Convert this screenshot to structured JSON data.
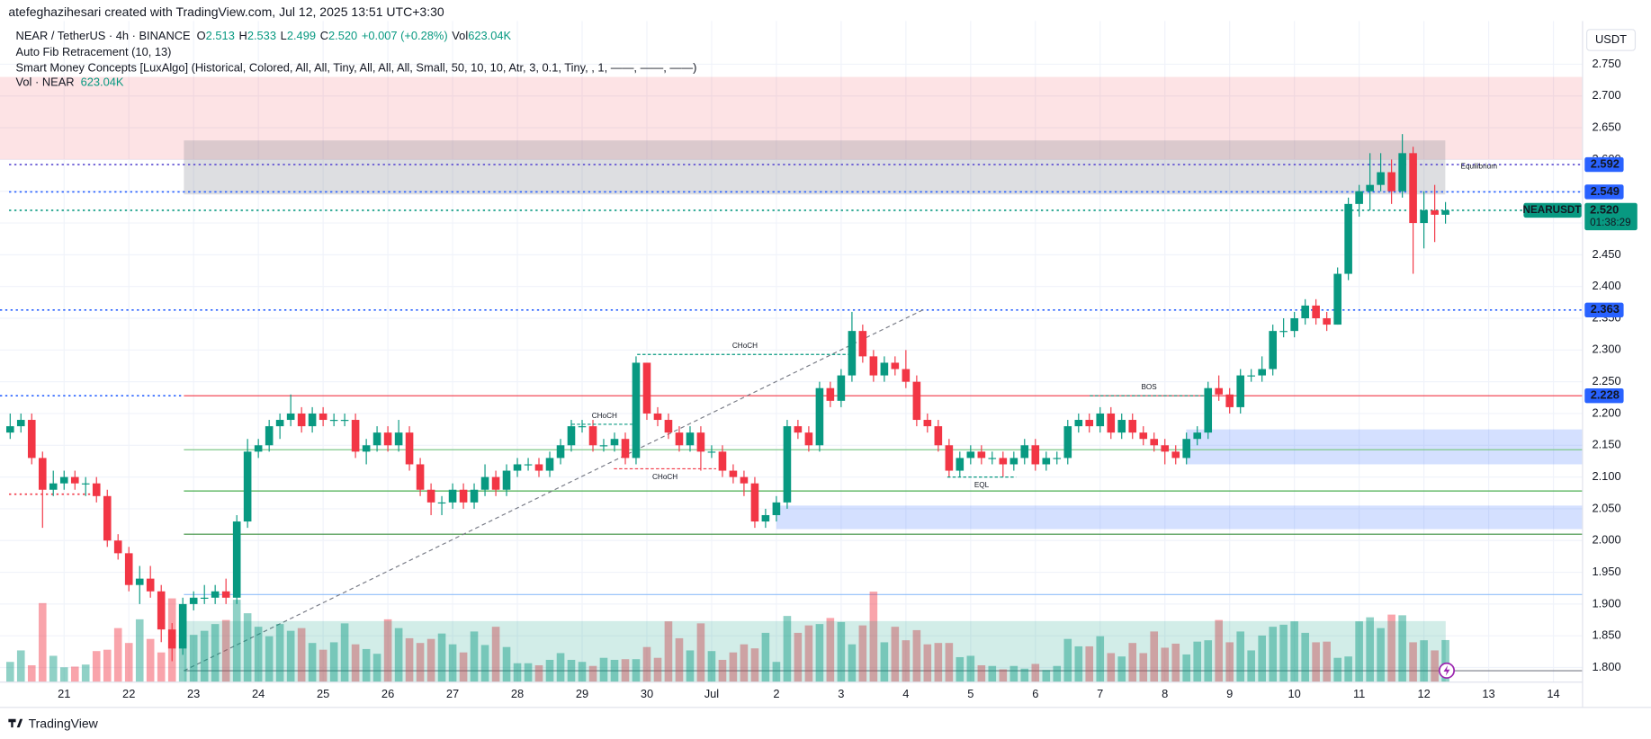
{
  "header": {
    "credit": "atefeghazihesari created with TradingView.com, Jul 12, 2025 13:51 UTC+3:30",
    "footer": "TradingView",
    "currency": "USDT"
  },
  "legend": {
    "symbol": "NEAR / TetherUS · 4h · BINANCE",
    "ohlc": [
      {
        "key": "O",
        "value": "2.513"
      },
      {
        "key": "H",
        "value": "2.533"
      },
      {
        "key": "L",
        "value": "2.499"
      },
      {
        "key": "C",
        "value": "2.520"
      }
    ],
    "change": "+0.007 (+0.28%)",
    "vol_key": "Vol",
    "vol_value": "623.04K",
    "indicators": [
      "Auto Fib Retracement (10, 13)",
      "Smart Money Concepts [LuxAlgo] (Historical, Colored, All, All, Tiny, All, All, All, Small, 50, 10, 10, Atr, 3, 0.1, Tiny, , 1, ——, ——, ——)"
    ],
    "vol_title": "Vol · NEAR",
    "vol_title_value": "623.04K"
  },
  "chart_data": {
    "type": "candlestick",
    "up_color": "#089981",
    "down_color": "#f23645",
    "xlim": [
      20.01,
      44.45
    ],
    "ylim": [
      1.777,
      2.818
    ],
    "xticks": [
      21,
      22,
      23,
      24,
      25,
      26,
      27,
      28,
      29,
      30,
      {
        "value": 31,
        "label": "Jul"
      },
      {
        "value": 32,
        "label": "2"
      },
      {
        "value": 33,
        "label": "3"
      },
      {
        "value": 34,
        "label": "4"
      },
      {
        "value": 35,
        "label": "5"
      },
      {
        "value": 36,
        "label": "6"
      },
      {
        "value": 37,
        "label": "7"
      },
      {
        "value": 38,
        "label": "8"
      },
      {
        "value": 39,
        "label": "9"
      },
      {
        "value": 40,
        "label": "10"
      },
      {
        "value": 41,
        "label": "11"
      },
      {
        "value": 42,
        "label": "12"
      },
      {
        "value": 43,
        "label": "13"
      },
      {
        "value": 44,
        "label": "14"
      }
    ],
    "yticks": [
      {
        "value": 2.75,
        "label": "2.750"
      },
      {
        "value": 2.7,
        "label": "2.700"
      },
      {
        "value": 2.65,
        "label": "2.650"
      },
      {
        "value": 2.6,
        "label": "2.600"
      },
      {
        "value": 2.55,
        "label": "2.550"
      },
      {
        "value": 2.5,
        "label": "2.500"
      },
      {
        "value": 2.45,
        "label": "2.450"
      },
      {
        "value": 2.4,
        "label": "2.400"
      },
      {
        "value": 2.35,
        "label": "2.350"
      },
      {
        "value": 2.3,
        "label": "2.300"
      },
      {
        "value": 2.25,
        "label": "2.250"
      },
      {
        "value": 2.2,
        "label": "2.200"
      },
      {
        "value": 2.15,
        "label": "2.150"
      },
      {
        "value": 2.1,
        "label": "2.100"
      },
      {
        "value": 2.05,
        "label": "2.050"
      },
      {
        "value": 2.0,
        "label": "2.000"
      },
      {
        "value": 1.95,
        "label": "1.950"
      },
      {
        "value": 1.9,
        "label": "1.900"
      },
      {
        "value": 1.85,
        "label": "1.850"
      },
      {
        "value": 1.8,
        "label": "1.800"
      }
    ],
    "grid": true,
    "x": [
      20.167,
      20.333,
      20.5,
      20.667,
      20.833,
      21,
      21.167,
      21.333,
      21.5,
      21.667,
      21.833,
      22,
      22.167,
      22.333,
      22.5,
      22.667,
      22.833,
      23,
      23.167,
      23.333,
      23.5,
      23.667,
      23.833,
      24,
      24.167,
      24.333,
      24.5,
      24.667,
      24.833,
      25,
      25.167,
      25.333,
      25.5,
      25.667,
      25.833,
      26,
      26.167,
      26.333,
      26.5,
      26.667,
      26.833,
      27,
      27.167,
      27.333,
      27.5,
      27.667,
      27.833,
      28,
      28.167,
      28.333,
      28.5,
      28.667,
      28.833,
      29,
      29.167,
      29.333,
      29.5,
      29.667,
      29.833,
      30,
      30.167,
      30.333,
      30.5,
      30.667,
      30.833,
      31,
      31.167,
      31.333,
      31.5,
      31.667,
      31.833,
      32,
      32.167,
      32.333,
      32.5,
      32.667,
      32.833,
      33,
      33.167,
      33.333,
      33.5,
      33.667,
      33.833,
      34,
      34.167,
      34.333,
      34.5,
      34.667,
      34.833,
      35,
      35.167,
      35.333,
      35.5,
      35.667,
      35.833,
      36,
      36.167,
      36.333,
      36.5,
      36.667,
      36.833,
      37,
      37.167,
      37.333,
      37.5,
      37.667,
      37.833,
      38,
      38.167,
      38.333,
      38.5,
      38.667,
      38.833,
      39,
      39.167,
      39.333,
      39.5,
      39.667,
      39.833,
      40,
      40.167,
      40.333,
      40.5,
      40.667,
      40.833,
      41,
      41.167,
      41.333,
      41.5,
      41.667,
      41.833,
      42,
      42.167,
      42.333
    ],
    "open": [
      2.17,
      2.18,
      2.19,
      2.13,
      2.08,
      2.09,
      2.1,
      2.09,
      2.09,
      2.07,
      2.0,
      1.98,
      1.93,
      1.94,
      1.92,
      1.86,
      1.83,
      1.9,
      1.91,
      1.91,
      1.92,
      1.91,
      2.03,
      2.14,
      2.15,
      2.18,
      2.19,
      2.2,
      2.18,
      2.2,
      2.19,
      2.19,
      2.19,
      2.14,
      2.15,
      2.17,
      2.15,
      2.17,
      2.12,
      2.08,
      2.06,
      2.06,
      2.08,
      2.06,
      2.08,
      2.1,
      2.08,
      2.11,
      2.12,
      2.12,
      2.11,
      2.13,
      2.15,
      2.18,
      2.18,
      2.15,
      2.15,
      2.16,
      2.13,
      2.28,
      2.2,
      2.19,
      2.17,
      2.15,
      2.17,
      2.14,
      2.14,
      2.11,
      2.1,
      2.09,
      2.03,
      2.04,
      2.06,
      2.18,
      2.17,
      2.15,
      2.24,
      2.22,
      2.26,
      2.33,
      2.29,
      2.26,
      2.28,
      2.27,
      2.25,
      2.19,
      2.18,
      2.15,
      2.11,
      2.13,
      2.14,
      2.13,
      2.13,
      2.12,
      2.13,
      2.15,
      2.12,
      2.13,
      2.13,
      2.18,
      2.19,
      2.18,
      2.2,
      2.17,
      2.19,
      2.17,
      2.16,
      2.15,
      2.14,
      2.13,
      2.16,
      2.17,
      2.24,
      2.23,
      2.21,
      2.26,
      2.26,
      2.27,
      2.33,
      2.33,
      2.35,
      2.37,
      2.35,
      2.34,
      2.42,
      2.53,
      2.55,
      2.56,
      2.58,
      2.55,
      2.61,
      2.5,
      2.52,
      2.513
    ],
    "high": [
      2.2,
      2.2,
      2.2,
      2.14,
      2.11,
      2.11,
      2.11,
      2.1,
      2.1,
      2.08,
      2.01,
      1.99,
      1.96,
      1.96,
      1.93,
      1.87,
      1.91,
      1.92,
      1.93,
      1.93,
      1.94,
      2.04,
      2.16,
      2.16,
      2.19,
      2.2,
      2.23,
      2.21,
      2.21,
      2.21,
      2.2,
      2.2,
      2.2,
      2.16,
      2.18,
      2.18,
      2.19,
      2.18,
      2.13,
      2.09,
      2.07,
      2.09,
      2.09,
      2.09,
      2.12,
      2.11,
      2.12,
      2.13,
      2.13,
      2.13,
      2.14,
      2.16,
      2.19,
      2.19,
      2.19,
      2.16,
      2.17,
      2.17,
      2.29,
      2.28,
      2.21,
      2.2,
      2.18,
      2.18,
      2.18,
      2.15,
      2.15,
      2.12,
      2.11,
      2.1,
      2.05,
      2.07,
      2.19,
      2.19,
      2.18,
      2.25,
      2.25,
      2.27,
      2.36,
      2.34,
      2.3,
      2.29,
      2.29,
      2.3,
      2.26,
      2.2,
      2.19,
      2.16,
      2.14,
      2.15,
      2.15,
      2.14,
      2.14,
      2.14,
      2.16,
      2.16,
      2.14,
      2.14,
      2.19,
      2.2,
      2.2,
      2.21,
      2.21,
      2.2,
      2.2,
      2.18,
      2.17,
      2.16,
      2.15,
      2.17,
      2.18,
      2.25,
      2.26,
      2.24,
      2.27,
      2.27,
      2.29,
      2.34,
      2.35,
      2.36,
      2.38,
      2.38,
      2.36,
      2.43,
      2.54,
      2.56,
      2.61,
      2.61,
      2.6,
      2.64,
      2.62,
      2.55,
      2.56,
      2.533
    ],
    "low": [
      2.16,
      2.17,
      2.12,
      2.02,
      2.07,
      2.08,
      2.08,
      2.07,
      2.06,
      1.99,
      1.97,
      1.92,
      1.9,
      1.91,
      1.84,
      1.81,
      1.82,
      1.89,
      1.9,
      1.9,
      1.9,
      1.9,
      2.02,
      2.13,
      2.14,
      2.16,
      2.18,
      2.17,
      2.17,
      2.18,
      2.18,
      2.18,
      2.13,
      2.12,
      2.14,
      2.14,
      2.14,
      2.11,
      2.07,
      2.04,
      2.04,
      2.05,
      2.05,
      2.05,
      2.07,
      2.07,
      2.07,
      2.1,
      2.11,
      2.1,
      2.1,
      2.12,
      2.14,
      2.17,
      2.14,
      2.14,
      2.14,
      2.12,
      2.12,
      2.19,
      2.18,
      2.16,
      2.14,
      2.14,
      2.11,
      2.13,
      2.1,
      2.09,
      2.07,
      2.02,
      2.02,
      2.03,
      2.05,
      2.16,
      2.14,
      2.14,
      2.21,
      2.21,
      2.25,
      2.28,
      2.25,
      2.25,
      2.26,
      2.24,
      2.18,
      2.17,
      2.14,
      2.1,
      2.1,
      2.12,
      2.12,
      2.12,
      2.1,
      2.11,
      2.12,
      2.11,
      2.11,
      2.12,
      2.12,
      2.17,
      2.17,
      2.17,
      2.16,
      2.16,
      2.16,
      2.15,
      2.14,
      2.12,
      2.12,
      2.12,
      2.15,
      2.16,
      2.22,
      2.2,
      2.2,
      2.25,
      2.25,
      2.26,
      2.32,
      2.32,
      2.34,
      2.34,
      2.33,
      2.34,
      2.41,
      2.51,
      2.52,
      2.55,
      2.53,
      2.54,
      2.42,
      2.46,
      2.47,
      2.499
    ],
    "close": [
      2.18,
      2.19,
      2.13,
      2.08,
      2.09,
      2.1,
      2.09,
      2.09,
      2.07,
      2.0,
      1.98,
      1.93,
      1.94,
      1.92,
      1.86,
      1.83,
      1.9,
      1.91,
      1.91,
      1.92,
      1.91,
      2.03,
      2.14,
      2.15,
      2.18,
      2.19,
      2.2,
      2.18,
      2.2,
      2.19,
      2.19,
      2.19,
      2.14,
      2.15,
      2.17,
      2.15,
      2.17,
      2.12,
      2.08,
      2.06,
      2.06,
      2.08,
      2.06,
      2.08,
      2.1,
      2.08,
      2.11,
      2.12,
      2.12,
      2.11,
      2.13,
      2.15,
      2.18,
      2.18,
      2.15,
      2.15,
      2.16,
      2.13,
      2.28,
      2.2,
      2.19,
      2.17,
      2.15,
      2.17,
      2.14,
      2.14,
      2.11,
      2.1,
      2.09,
      2.03,
      2.04,
      2.06,
      2.18,
      2.17,
      2.15,
      2.24,
      2.22,
      2.26,
      2.33,
      2.29,
      2.26,
      2.28,
      2.27,
      2.25,
      2.19,
      2.18,
      2.15,
      2.11,
      2.13,
      2.14,
      2.13,
      2.13,
      2.12,
      2.13,
      2.15,
      2.12,
      2.13,
      2.13,
      2.18,
      2.19,
      2.18,
      2.2,
      2.17,
      2.19,
      2.17,
      2.16,
      2.15,
      2.14,
      2.13,
      2.16,
      2.17,
      2.24,
      2.23,
      2.21,
      2.26,
      2.26,
      2.27,
      2.33,
      2.33,
      2.35,
      2.37,
      2.35,
      2.34,
      2.42,
      2.53,
      2.55,
      2.56,
      2.58,
      2.55,
      2.61,
      2.5,
      2.52,
      2.513,
      2.52
    ],
    "volume": [
      300,
      470,
      250,
      1170,
      390,
      220,
      230,
      260,
      460,
      480,
      800,
      580,
      930,
      640,
      440,
      1240,
      900,
      700,
      760,
      860,
      920,
      1220,
      1020,
      820,
      680,
      860,
      760,
      800,
      580,
      480,
      590,
      870,
      560,
      490,
      420,
      930,
      800,
      650,
      580,
      640,
      720,
      560,
      440,
      750,
      550,
      820,
      520,
      280,
      280,
      250,
      330,
      430,
      330,
      300,
      240,
      360,
      330,
      340,
      340,
      520,
      360,
      900,
      650,
      470,
      870,
      460,
      330,
      440,
      560,
      500,
      730,
      300,
      980,
      730,
      840,
      860,
      950,
      890,
      560,
      840,
      1340,
      590,
      820,
      620,
      770,
      560,
      580,
      580,
      370,
      390,
      250,
      240,
      190,
      240,
      200,
      270,
      180,
      240,
      640,
      530,
      530,
      680,
      430,
      380,
      580,
      430,
      750,
      510,
      570,
      410,
      600,
      620,
      920,
      590,
      750,
      470,
      690,
      820,
      850,
      900,
      730,
      590,
      600,
      360,
      380,
      900,
      960,
      800,
      1000,
      990,
      590,
      620,
      470,
      623.04
    ],
    "zones": [
      {
        "from": 20.01,
        "to": 44.45,
        "top": 2.73,
        "bottom": 2.6,
        "color": "rgba(242,54,69,0.14)"
      },
      {
        "from": 22.85,
        "to": 42.33,
        "top": 2.63,
        "bottom": 2.545,
        "color": "rgba(120,123,134,0.25)"
      },
      {
        "from": 38.33,
        "to": 44.45,
        "top": 2.175,
        "bottom": 2.12,
        "color": "rgba(41,98,255,0.2)"
      },
      {
        "from": 32.0,
        "to": 44.45,
        "top": 2.055,
        "bottom": 2.018,
        "color": "rgba(41,98,255,0.2)"
      }
    ],
    "lines": [
      {
        "value": 2.592,
        "from": 20.15,
        "to": 44.45,
        "color": "#5b4bd1",
        "style": "dotted"
      },
      {
        "value": 2.549,
        "from": 20.15,
        "to": 44.45,
        "color": "#2962ff",
        "style": "dotted"
      },
      {
        "value": 2.52,
        "from": 20.15,
        "to": 44.45,
        "color": "#089981",
        "style": "dotted"
      },
      {
        "value": 2.363,
        "from": 20.01,
        "to": 44.45,
        "color": "#2962ff",
        "style": "dotted"
      },
      {
        "value": 2.228,
        "from": 20.01,
        "to": 22.85,
        "color": "#2962ff",
        "style": "dotted"
      },
      {
        "value": 2.228,
        "from": 22.85,
        "to": 44.45,
        "color": "#f23645",
        "style": "solid"
      },
      {
        "value": 2.143,
        "from": 22.85,
        "to": 44.45,
        "color": "#7fc98a",
        "style": "solid"
      },
      {
        "value": 2.078,
        "from": 22.85,
        "to": 44.45,
        "color": "#4caf50",
        "style": "solid"
      },
      {
        "value": 2.01,
        "from": 22.85,
        "to": 44.45,
        "color": "#388e3c",
        "style": "solid"
      },
      {
        "value": 2.073,
        "from": 20.15,
        "to": 21.5,
        "color": "#f23645",
        "style": "dotted"
      },
      {
        "value": 1.915,
        "from": 22.85,
        "to": 44.45,
        "color": "#90bff9",
        "style": "solid"
      },
      {
        "value": 1.795,
        "from": 22.85,
        "to": 44.45,
        "color": "#787b86",
        "style": "solid"
      }
    ],
    "fib_line": {
      "x": [
        22.85,
        34.3
      ],
      "y": [
        1.795,
        2.365
      ]
    },
    "structures": [
      {
        "label": "CHoCH",
        "level": 2.293,
        "from": 29.85,
        "to": 33.18,
        "color": "#089981",
        "side": "above"
      },
      {
        "label": "CHoCH",
        "level": 2.183,
        "from": 28.84,
        "to": 29.85,
        "color": "#089981",
        "side": "above"
      },
      {
        "label": "CHoCH",
        "level": 2.113,
        "from": 29.49,
        "to": 31.07,
        "color": "#f23645",
        "side": "below"
      },
      {
        "label": "BOS",
        "level": 2.228,
        "from": 36.84,
        "to": 38.67,
        "color": "#089981",
        "side": "above"
      },
      {
        "label": "EQL",
        "level": 2.1,
        "from": 34.64,
        "to": 35.7,
        "color": "#089981",
        "side": "below"
      }
    ],
    "annotations": [
      {
        "text": "Equilibrium",
        "x": 42.85,
        "y": 2.589,
        "color": "#b2b5be"
      }
    ],
    "price_labels": [
      {
        "value": 2.592,
        "color": "#2962ff"
      },
      {
        "value": 2.549,
        "color": "#2962ff"
      },
      {
        "value": 2.363,
        "color": "#2962ff"
      },
      {
        "value": 2.228,
        "color": "#2962ff"
      }
    ],
    "current": {
      "name": "NEARUSDT",
      "value": {
        "value": 2.52,
        "label": "2.520"
      },
      "countdown": "01:38:29",
      "color": "#089981"
    }
  }
}
